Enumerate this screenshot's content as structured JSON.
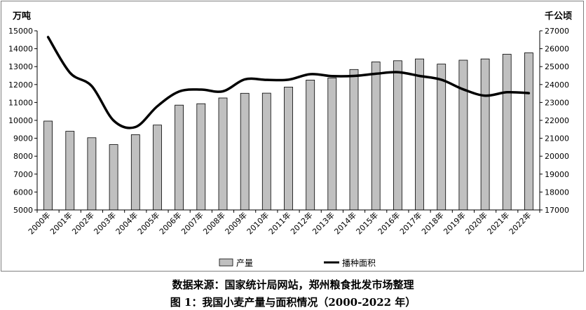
{
  "chart_data": {
    "type": "bar+line",
    "categories": [
      "2000年",
      "2001年",
      "2002年",
      "2003年",
      "2004年",
      "2005年",
      "2006年",
      "2007年",
      "2008年",
      "2009年",
      "2010年",
      "2011年",
      "2012年",
      "2013年",
      "2014年",
      "2015年",
      "2016年",
      "2017年",
      "2018年",
      "2019年",
      "2020年",
      "2021年",
      "2022年"
    ],
    "series": [
      {
        "name": "产量",
        "type": "bar",
        "axis": "left",
        "values": [
          9960,
          9390,
          9030,
          8650,
          9200,
          9740,
          10850,
          10930,
          11250,
          11510,
          11520,
          11860,
          12250,
          12370,
          12840,
          13260,
          13330,
          13430,
          13140,
          13360,
          13430,
          13690,
          13770
        ]
      },
      {
        "name": "播种面积",
        "type": "line",
        "axis": "right",
        "values": [
          26650,
          24660,
          23910,
          21990,
          21630,
          22790,
          23610,
          23720,
          23620,
          24290,
          24260,
          24270,
          24580,
          24470,
          24480,
          24600,
          24690,
          24480,
          24270,
          23730,
          23380,
          23570,
          23520
        ]
      }
    ],
    "y_left": {
      "label": "万吨",
      "min": 5000,
      "max": 15000,
      "step": 1000
    },
    "y_right": {
      "label": "千公顷",
      "min": 17000,
      "max": 27000,
      "step": 1000
    },
    "grid": false,
    "legend_position": "bottom"
  },
  "captions": {
    "source": "数据来源：国家统计局网站，郑州粮食批发市场整理",
    "figure": "图 1：我国小麦产量与面积情况（2000-2022 年）"
  },
  "colors": {
    "bar_fill": "#c0c0c0",
    "bar_stroke": "#000000",
    "line": "#000000",
    "axis": "#000000"
  }
}
